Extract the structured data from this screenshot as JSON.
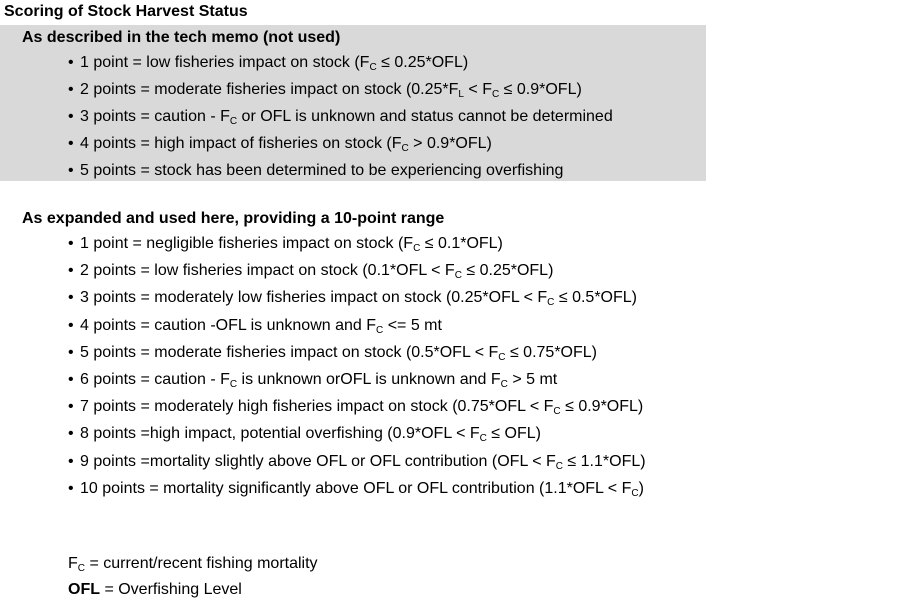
{
  "title": "Scoring of Stock Harvest Status",
  "memo": {
    "heading": "As described in the tech memo (not used)",
    "items": [
      [
        "1 point = low fisheries impact on stock (F",
        "C",
        " ≤ 0.25*OFL)"
      ],
      [
        "2 points = moderate fisheries impact on stock (0.25*F",
        "L",
        " < F",
        "C",
        " ≤ 0.9*OFL)"
      ],
      [
        "3 points = caution - F",
        "C",
        " or OFL is unknown and status cannot be determined"
      ],
      [
        "4 points = high impact of fisheries on stock (F",
        "C",
        " > 0.9*OFL)"
      ],
      [
        "5 points = stock has been determined to be experiencing overfishing"
      ]
    ]
  },
  "expanded": {
    "heading": "As expanded and used here, providing a 10-point range",
    "items": [
      [
        "1 point = negligible fisheries impact on stock (F",
        "C",
        " ≤ 0.1*OFL)"
      ],
      [
        "2 points = low fisheries impact on stock (0.1*OFL < F",
        "C",
        " ≤ 0.25*OFL)"
      ],
      [
        "3 points = moderately low fisheries impact on stock (0.25*OFL < F",
        "C",
        " ≤ 0.5*OFL)"
      ],
      [
        "4 points = caution -OFL is unknown and F",
        "C",
        " <= 5 mt"
      ],
      [
        "5 points = moderate fisheries impact on stock (0.5*OFL < F",
        "C",
        " ≤ 0.75*OFL)"
      ],
      [
        "6 points = caution - F",
        "C",
        "  is unknown orOFL is unknown and F",
        "C",
        " > 5 mt"
      ],
      [
        "7 points = moderately high fisheries impact on stock (0.75*OFL < F",
        "C",
        " ≤ 0.9*OFL)"
      ],
      [
        "8 points =high impact, potential overfishing (0.9*OFL < F",
        "C",
        " ≤ OFL)"
      ],
      [
        "9 points =mortality slightly above OFL or OFL contribution (OFL < F",
        "C",
        " ≤ 1.1*OFL)"
      ],
      [
        "10 points = mortality significantly above OFL or OFL contribution (1.1*OFL < F",
        "C",
        ")"
      ]
    ]
  },
  "definitions": {
    "fc_symbol": "F",
    "fc_sub": "C",
    "fc_text": " = current/recent fishing mortality",
    "ofl_symbol": "OFL",
    "ofl_text": " = Overfishing Level"
  },
  "colors": {
    "memo_background": "#d9d9d9"
  }
}
